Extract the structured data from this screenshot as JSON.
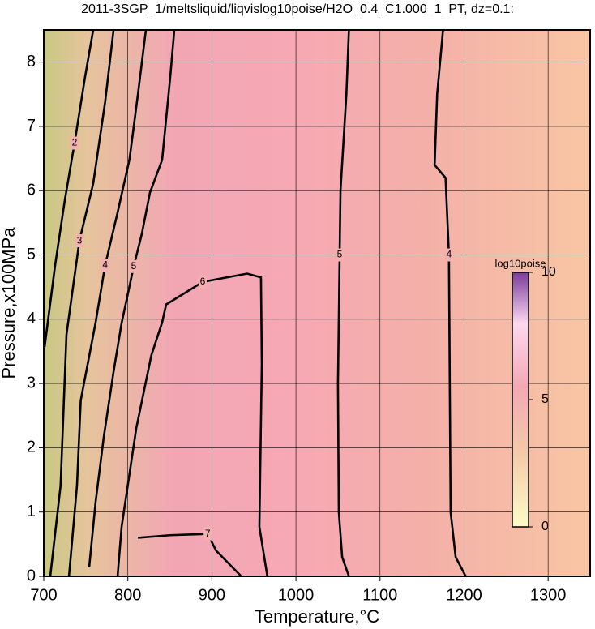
{
  "chart_data": {
    "type": "contour",
    "title": "2011-3SGP_1/meltsliquid/liqvislog10poise/H2O_0.4_C1.000_1_PT, dz=0.1:",
    "xlabel": "Temperature,°C",
    "ylabel": "Pressure,x100MPa",
    "xlim": [
      700,
      1350
    ],
    "ylim": [
      0,
      8.5
    ],
    "xticks": [
      700,
      800,
      900,
      1000,
      1100,
      1200,
      1300
    ],
    "yticks": [
      0,
      1,
      2,
      3,
      4,
      5,
      6,
      7,
      8
    ],
    "grid": true,
    "colorbar": {
      "label": "log10poise",
      "lim": [
        0,
        10
      ],
      "ticks": [
        0,
        5,
        10
      ]
    },
    "contours": [
      {
        "level": 2,
        "x": [
          701,
          713.5,
          725,
          736.6,
          749,
          758.8
        ],
        "y": [
          3.57,
          4.84,
          5.85,
          6.74,
          7.76,
          8.5
        ]
      },
      {
        "level": 3,
        "x": [
          707.7,
          720,
          727,
          742.4,
          758.8,
          773,
          783
        ],
        "y": [
          0,
          1.41,
          3.76,
          5.22,
          6.11,
          7.38,
          8.5
        ]
      },
      {
        "level": 4,
        "x": [
          730,
          739.5,
          744,
          761.7,
          773,
          787.8,
          802,
          812,
          821.5
        ],
        "y": [
          0,
          1.41,
          2.74,
          3.95,
          4.84,
          5.66,
          6.49,
          7.5,
          8.5
        ]
      },
      {
        "level": 5,
        "x": [
          754,
          761.7,
          771.4,
          783,
          792.6,
          807,
          816.7,
          826.3,
          840.8,
          850.4,
          855.3
        ],
        "y": [
          0.14,
          1.16,
          2.17,
          3.18,
          3.94,
          4.82,
          5.33,
          5.97,
          6.48,
          7.76,
          8.5
        ]
      },
      {
        "level": 6,
        "x": [
          787.8,
          792.6,
          810,
          828,
          840.8,
          845.6,
          889,
          942,
          958.4,
          959.4,
          956.5,
          966
        ],
        "y": [
          0,
          0.77,
          2.3,
          3.44,
          3.95,
          4.23,
          4.58,
          4.71,
          4.65,
          3.31,
          0.77,
          0
        ]
      },
      {
        "level": 7,
        "x": [
          812,
          850,
          895,
          905,
          935
        ],
        "y": [
          0.6,
          0.64,
          0.66,
          0.4,
          0
        ]
      },
      {
        "level": 5,
        "x": [
          1063,
          1055,
          1051,
          1050,
          1052,
          1053,
          1060,
          1063
        ],
        "y": [
          0,
          0.3,
          1,
          3,
          5,
          6,
          7.5,
          8.5
        ]
      },
      {
        "level": 4,
        "x": [
          1202,
          1190,
          1184,
          1183,
          1182,
          1178,
          1165,
          1168,
          1175
        ],
        "y": [
          0,
          0.3,
          1,
          3,
          5,
          6.2,
          6.4,
          7.5,
          8.5
        ]
      }
    ]
  }
}
